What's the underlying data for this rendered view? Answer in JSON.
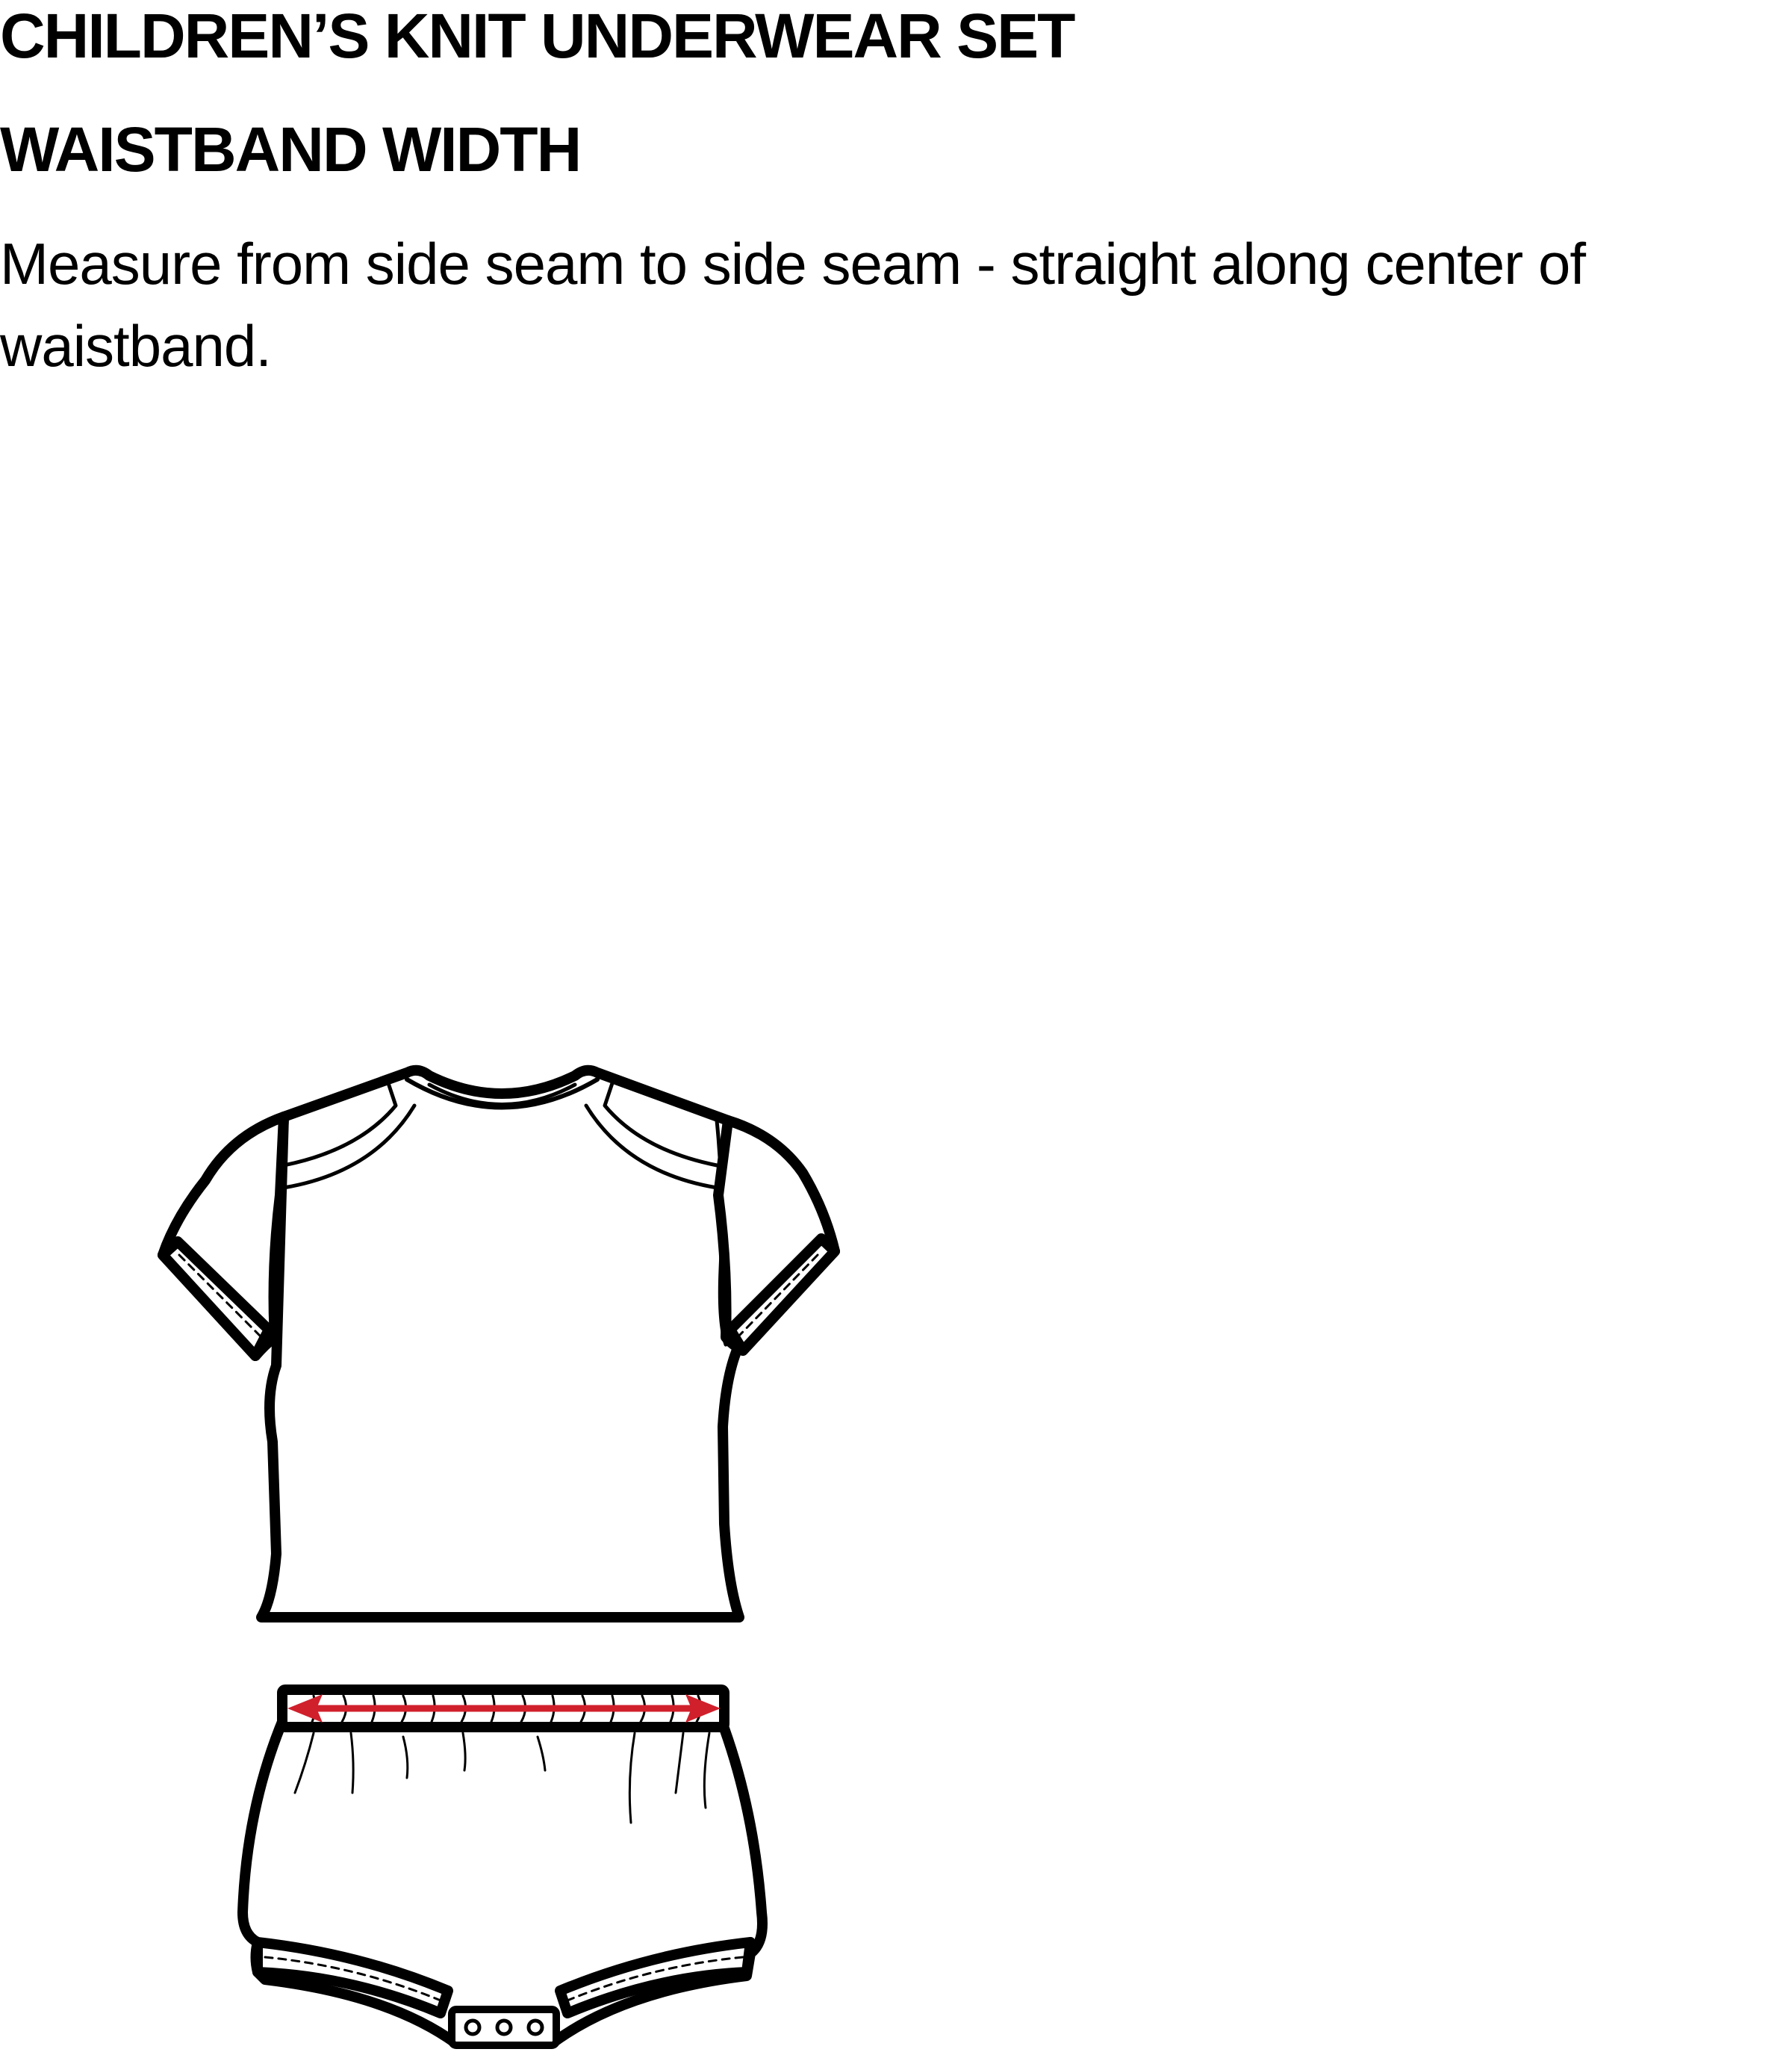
{
  "header": {
    "title": "CHILDREN’S KNIT UNDERWEAR SET",
    "measurement_name": "WAISTBAND WIDTH",
    "instruction": "Measure from side seam to side seam - straight along center of waistband."
  },
  "illustration": {
    "garments": [
      "t-shirt",
      "bloomer"
    ],
    "measure_arrow_color": "#d0202c",
    "line_color": "#000000"
  }
}
